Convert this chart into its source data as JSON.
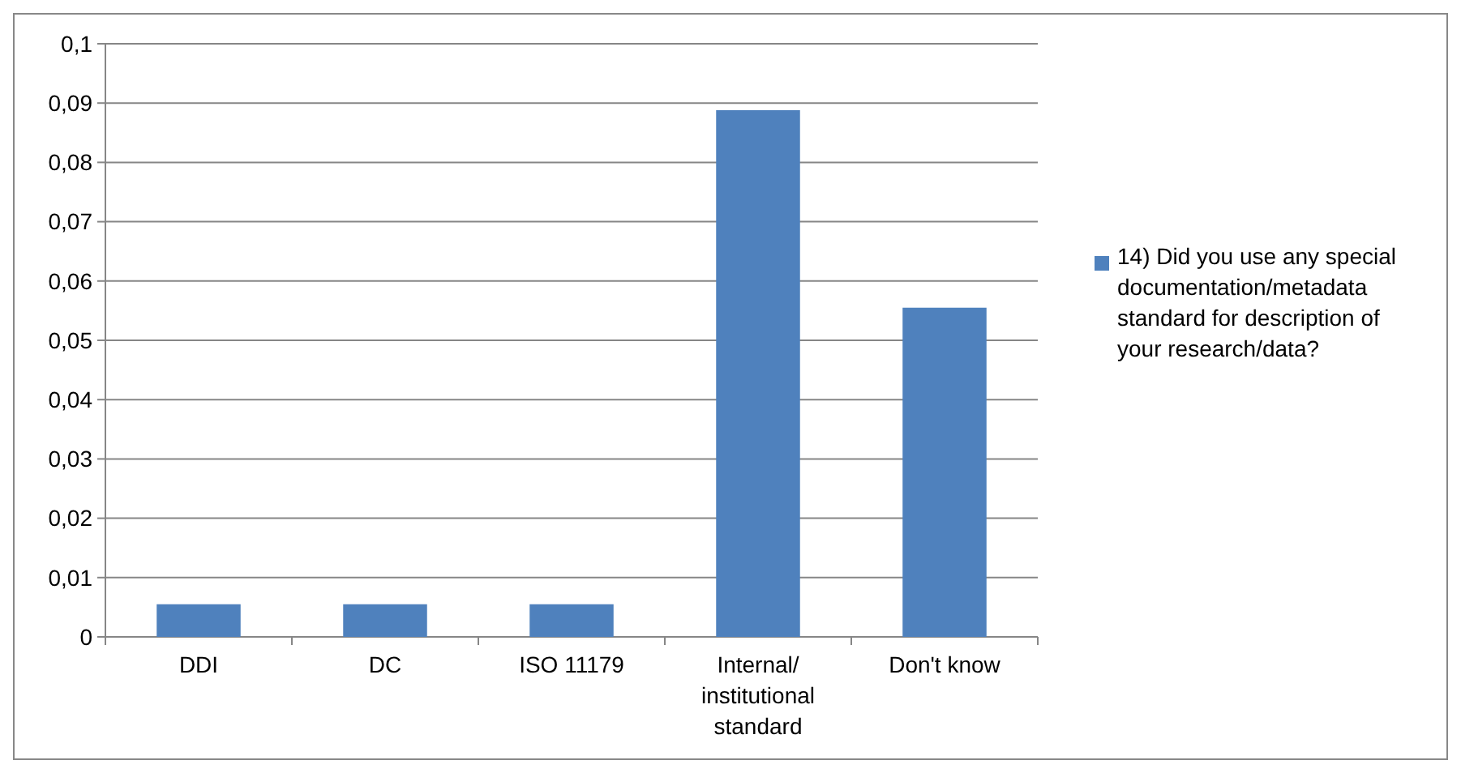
{
  "chart_data": {
    "type": "bar",
    "categories": [
      "DDI",
      "DC",
      "ISO 11179",
      "Internal/ institutional standard",
      "Don't know"
    ],
    "series": [
      {
        "name": "14) Did you use any special documentation/metadata standard for description of your research/data?",
        "color": "#4f81bd",
        "values": [
          0.0055,
          0.0055,
          0.0055,
          0.0888,
          0.0555
        ]
      }
    ],
    "ylim": [
      0,
      0.1
    ],
    "yticks": [
      0,
      {
        "value": 0.01,
        "label": "0,01"
      },
      {
        "value": 0.02,
        "label": "0,02"
      },
      {
        "value": 0.03,
        "label": "0,03"
      },
      {
        "value": 0.04,
        "label": "0,04"
      },
      {
        "value": 0.05,
        "label": "0,05"
      },
      {
        "value": 0.06,
        "label": "0,06"
      },
      {
        "value": 0.07,
        "label": "0,07"
      },
      {
        "value": 0.08,
        "label": "0,08"
      },
      {
        "value": 0.09,
        "label": "0,09"
      },
      {
        "value": 0.1,
        "label": "0,1"
      }
    ],
    "grid": "y",
    "legend": "right"
  }
}
